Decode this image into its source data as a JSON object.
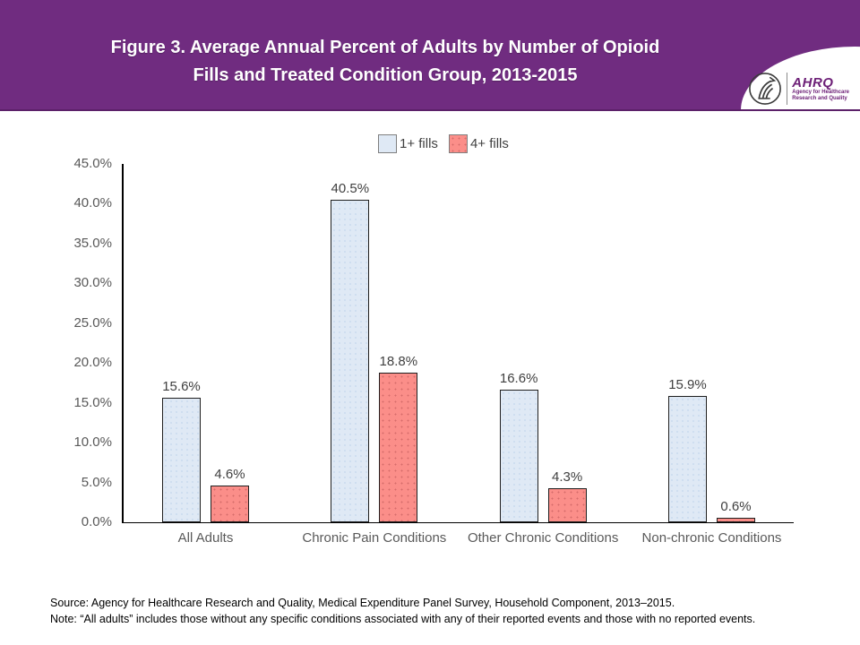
{
  "header": {
    "title_line1": "Figure 3. Average Annual Percent of Adults by Number of Opioid",
    "title_line2": "Fills and Treated Condition Group, 2013-2015",
    "background_color": "#702c80",
    "logo": {
      "acronym": "AHRQ",
      "tagline_line1": "Agency for Healthcare",
      "tagline_line2": "Research and Quality",
      "brand_color": "#6d2077"
    }
  },
  "chart_data": {
    "type": "bar",
    "title": "",
    "categories": [
      "All Adults",
      "Chronic Pain Conditions",
      "Other Chronic Conditions",
      "Non-chronic Conditions"
    ],
    "series": [
      {
        "name": "1+ fills",
        "color": "#dfe9f5",
        "values": [
          15.6,
          40.5,
          16.6,
          15.9
        ],
        "labels": [
          "15.6%",
          "40.5%",
          "16.6%",
          "15.9%"
        ]
      },
      {
        "name": "4+ fills",
        "color": "#fb8e89",
        "values": [
          4.6,
          18.8,
          4.3,
          0.6
        ],
        "labels": [
          "4.6%",
          "18.8%",
          "4.3%",
          "0.6%"
        ]
      }
    ],
    "ylim": [
      0,
      45
    ],
    "ytick_interval": 5,
    "ytick_labels": [
      "0.0%",
      "5.0%",
      "10.0%",
      "15.0%",
      "20.0%",
      "25.0%",
      "30.0%",
      "35.0%",
      "40.0%",
      "45.0%"
    ],
    "grid": false,
    "legend_position": "top-center",
    "xlabel": "",
    "ylabel": ""
  },
  "footer": {
    "source": "Source: Agency for Healthcare Research and Quality, Medical Expenditure Panel Survey, Household Component, 2013–2015.",
    "note": "Note: “All adults” includes those without any specific conditions associated with any of their reported events and those with no reported events."
  }
}
